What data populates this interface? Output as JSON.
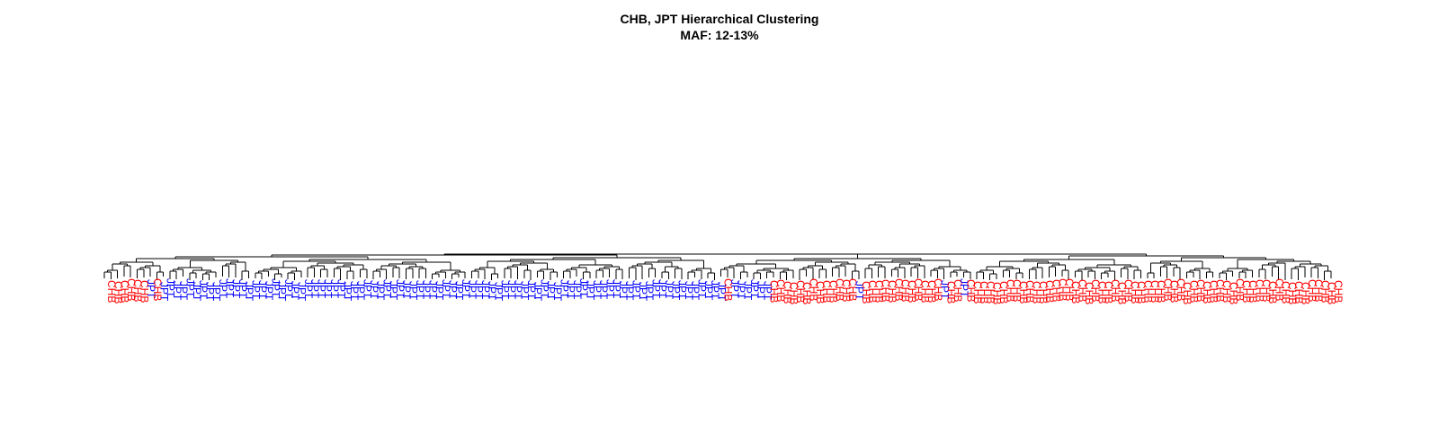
{
  "title": "CHB, JPT Hierarchical Clustering",
  "subtitle": "MAF: 12-13%",
  "colors": {
    "CHB": "#ff0000",
    "JPT": "#0000ff",
    "branch": "#000000"
  },
  "chart_data": {
    "type": "dendrogram",
    "groups": [
      "CHB",
      "JPT"
    ],
    "leaf_sequence": [
      [
        "CHB",
        6
      ],
      [
        "JPT",
        1
      ],
      [
        "CHB",
        1
      ],
      [
        "JPT",
        86
      ],
      [
        "CHB",
        1
      ],
      [
        "JPT",
        6
      ],
      [
        "CHB",
        13
      ],
      [
        "JPT",
        1
      ],
      [
        "CHB",
        12
      ],
      [
        "JPT",
        1
      ],
      [
        "CHB",
        2
      ],
      [
        "JPT",
        1
      ],
      [
        "CHB",
        57
      ]
    ],
    "note_sides": {
      "left_cluster": "JPT",
      "right_cluster": "CHB"
    }
  }
}
